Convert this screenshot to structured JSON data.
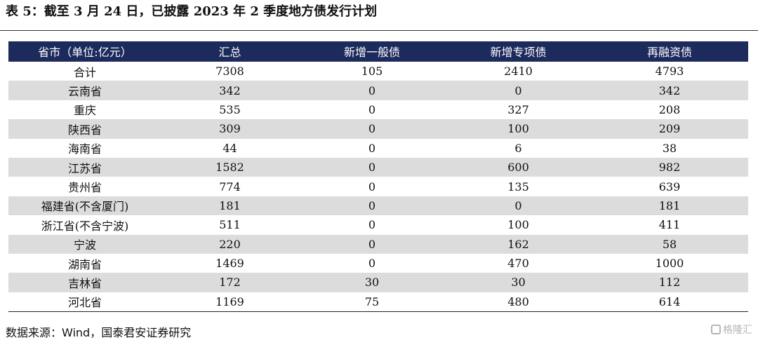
{
  "title": "表 5：截至 3 月 24 日，已披露 2023 年 2 季度地方债发行计划",
  "table": {
    "headers": [
      "省市（单位:亿元）",
      "汇总",
      "新增一般债",
      "新增专项债",
      "再融资债"
    ],
    "rows": [
      [
        "合计",
        "7308",
        "105",
        "2410",
        "4793"
      ],
      [
        "云南省",
        "342",
        "0",
        "0",
        "342"
      ],
      [
        "重庆",
        "535",
        "0",
        "327",
        "208"
      ],
      [
        "陕西省",
        "309",
        "0",
        "100",
        "209"
      ],
      [
        "海南省",
        "44",
        "0",
        "6",
        "38"
      ],
      [
        "江苏省",
        "1582",
        "0",
        "600",
        "982"
      ],
      [
        "贵州省",
        "774",
        "0",
        "135",
        "639"
      ],
      [
        "福建省(不含厦门)",
        "181",
        "0",
        "0",
        "181"
      ],
      [
        "浙江省(不含宁波)",
        "511",
        "0",
        "100",
        "411"
      ],
      [
        "宁波",
        "220",
        "0",
        "162",
        "58"
      ],
      [
        "湖南省",
        "1469",
        "0",
        "470",
        "1000"
      ],
      [
        "吉林省",
        "172",
        "30",
        "30",
        "112"
      ],
      [
        "河北省",
        "1169",
        "75",
        "480",
        "614"
      ]
    ]
  },
  "source": "数据来源：Wind，国泰君安证券研究",
  "watermark": "格隆汇"
}
